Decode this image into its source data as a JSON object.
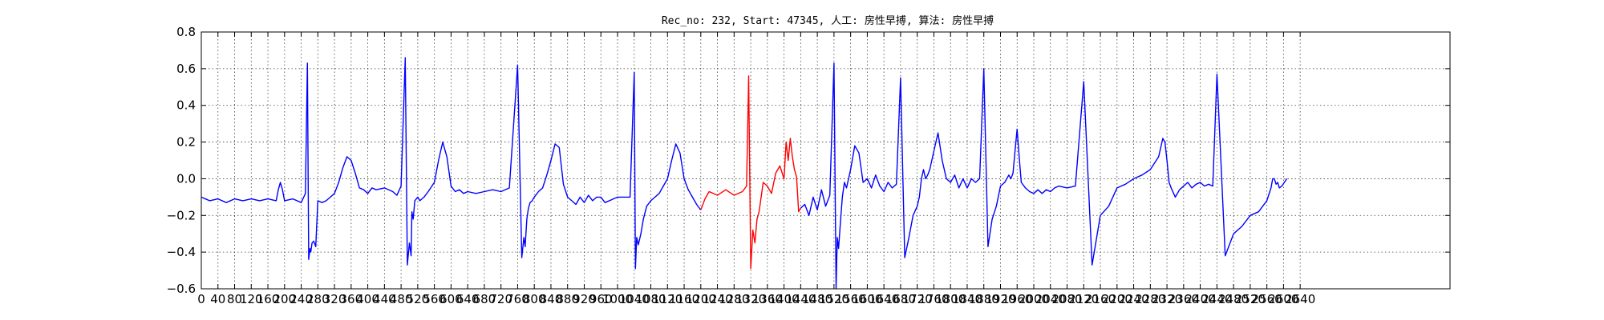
{
  "chart_data": {
    "type": "line",
    "title": "Rec_no: 232, Start: 47345, 人工: 房性早搏, 算法: 房性早搏",
    "xlabel": "",
    "ylabel": "",
    "xlim": [
      0,
      3000
    ],
    "ylim": [
      -0.6,
      0.8
    ],
    "yticks": [
      -0.6,
      -0.4,
      -0.2,
      0.0,
      0.2,
      0.4,
      0.6,
      0.8
    ],
    "ytick_labels": [
      "−0.6",
      "−0.4",
      "−0.2",
      "0.0",
      "0.2",
      "0.4",
      "0.6",
      "0.8"
    ],
    "xticks": [
      0,
      40,
      80,
      120,
      160,
      200,
      240,
      280,
      320,
      360,
      400,
      440,
      480,
      520,
      560,
      600,
      640,
      680,
      720,
      760,
      800,
      840,
      880,
      920,
      960,
      1000,
      1040,
      1080,
      1120,
      1160,
      1200,
      1240,
      1280,
      1320,
      1360,
      1400,
      1440,
      1480,
      1520,
      1560,
      1600,
      1640,
      1680,
      1720,
      1760,
      1800,
      1840,
      1880,
      1920,
      1960,
      2000,
      2040,
      2080,
      2120,
      2160,
      2200,
      2240,
      2280,
      2320,
      2360,
      2400,
      2440,
      2480,
      2520,
      2560,
      2600,
      2640
    ],
    "grid": true,
    "series": [
      {
        "color": "#0000ff",
        "x": [
          0,
          20,
          40,
          60,
          80,
          100,
          120,
          140,
          160,
          180,
          185,
          190,
          195,
          200,
          220,
          240,
          250,
          255,
          258,
          261,
          263,
          266,
          270,
          275,
          280,
          290,
          300,
          310,
          320,
          330,
          340,
          350,
          360,
          370,
          380,
          390,
          400,
          410,
          420,
          440,
          460,
          470,
          480,
          490,
          495,
          500,
          504,
          506,
          509,
          513,
          520,
          525,
          535,
          545,
          560,
          570,
          580,
          590,
          600,
          610,
          620,
          630,
          640,
          660,
          680,
          700,
          720,
          740,
          760,
          770,
          775,
          778,
          782,
          786,
          790,
          795,
          800,
          810,
          820,
          830,
          840,
          850,
          860,
          870,
          880,
          890,
          900,
          910,
          920,
          930,
          940,
          950,
          960,
          970,
          1000,
          1030,
          1040,
          1043,
          1046,
          1050,
          1056,
          1062,
          1070,
          1080,
          1090,
          1100,
          1110,
          1120,
          1130,
          1140,
          1150,
          1160,
          1170,
          1180,
          1190,
          1200
        ],
        "y": [
          -0.1,
          -0.12,
          -0.11,
          -0.13,
          -0.11,
          -0.12,
          -0.11,
          -0.12,
          -0.11,
          -0.12,
          -0.06,
          -0.02,
          -0.06,
          -0.12,
          -0.11,
          -0.13,
          -0.08,
          0.63,
          -0.44,
          -0.38,
          -0.4,
          -0.35,
          -0.34,
          -0.37,
          -0.12,
          -0.13,
          -0.12,
          -0.1,
          -0.08,
          -0.02,
          0.06,
          0.12,
          0.1,
          0.03,
          -0.05,
          -0.06,
          -0.08,
          -0.05,
          -0.06,
          -0.05,
          -0.07,
          -0.09,
          -0.04,
          0.66,
          -0.47,
          -0.35,
          -0.42,
          -0.18,
          -0.22,
          -0.12,
          -0.1,
          -0.12,
          -0.1,
          -0.07,
          -0.02,
          0.1,
          0.2,
          0.12,
          -0.04,
          -0.07,
          -0.06,
          -0.08,
          -0.07,
          -0.08,
          -0.07,
          -0.06,
          -0.07,
          -0.05,
          0.62,
          -0.43,
          -0.32,
          -0.37,
          -0.22,
          -0.16,
          -0.13,
          -0.12,
          -0.1,
          -0.07,
          -0.05,
          0.02,
          0.1,
          0.19,
          0.17,
          -0.03,
          -0.1,
          -0.12,
          -0.14,
          -0.1,
          -0.13,
          -0.09,
          -0.12,
          -0.1,
          -0.1,
          -0.13,
          -0.1,
          -0.1,
          0.58,
          -0.49,
          -0.32,
          -0.36,
          -0.3,
          -0.22,
          -0.15,
          -0.12,
          -0.1,
          -0.08,
          -0.04,
          0.0,
          0.1,
          0.19,
          0.14,
          0.0,
          -0.06,
          -0.1,
          -0.14,
          -0.17
        ]
      },
      {
        "color": "#ff0000",
        "x": [
          1200,
          1210,
          1220,
          1240,
          1260,
          1280,
          1300,
          1310,
          1315,
          1320,
          1325,
          1330,
          1335,
          1340,
          1350,
          1360,
          1370,
          1380,
          1390,
          1400,
          1405,
          1410,
          1415,
          1420,
          1425,
          1430,
          1435,
          1440
        ],
        "y": [
          -0.17,
          -0.11,
          -0.07,
          -0.09,
          -0.06,
          -0.09,
          -0.07,
          -0.04,
          0.56,
          -0.49,
          -0.28,
          -0.35,
          -0.22,
          -0.18,
          -0.02,
          -0.04,
          -0.08,
          0.03,
          0.07,
          0.0,
          0.2,
          0.1,
          0.22,
          0.12,
          0.05,
          0.01,
          -0.18,
          -0.16
        ]
      },
      {
        "color": "#0000ff",
        "x": [
          1440,
          1450,
          1460,
          1470,
          1480,
          1490,
          1500,
          1510,
          1520,
          1525,
          1528,
          1531,
          1535,
          1540,
          1545,
          1550,
          1560,
          1570,
          1580,
          1590,
          1600,
          1610,
          1620,
          1630,
          1640,
          1650,
          1660,
          1670,
          1680,
          1690,
          1700,
          1710,
          1720,
          1725,
          1730,
          1735,
          1740,
          1745,
          1750,
          1760,
          1770,
          1780,
          1790,
          1800,
          1810,
          1820,
          1830,
          1840,
          1850,
          1860,
          1870,
          1880,
          1890,
          1900,
          1910,
          1920,
          1930,
          1940,
          1945,
          1950,
          1955,
          1960,
          1965,
          1970,
          1980,
          1990,
          2000,
          2010,
          2020,
          2030,
          2040,
          2050,
          2060,
          2080,
          2100,
          2120,
          2140,
          2160,
          2180,
          2200,
          2220,
          2240,
          2260,
          2280,
          2300,
          2310,
          2315,
          2320,
          2325,
          2330,
          2340,
          2350,
          2360,
          2370,
          2380,
          2390,
          2400,
          2410,
          2420,
          2430,
          2440,
          2460,
          2480,
          2500,
          2520,
          2540,
          2560,
          2570,
          2574,
          2578,
          2582,
          2586,
          2590,
          2596,
          2602,
          2608
        ],
        "y": [
          -0.16,
          -0.14,
          -0.2,
          -0.1,
          -0.17,
          -0.06,
          -0.15,
          -0.09,
          0.63,
          -0.6,
          -0.32,
          -0.38,
          -0.25,
          -0.1,
          -0.02,
          -0.05,
          0.05,
          0.18,
          0.14,
          -0.02,
          0.0,
          -0.05,
          0.02,
          -0.04,
          -0.07,
          -0.02,
          -0.05,
          -0.03,
          0.55,
          -0.43,
          -0.32,
          -0.2,
          -0.15,
          -0.1,
          0.0,
          0.05,
          0.0,
          0.02,
          0.05,
          0.15,
          0.25,
          0.1,
          0.0,
          -0.02,
          0.02,
          -0.05,
          0.0,
          -0.05,
          0.0,
          -0.02,
          0.0,
          0.6,
          -0.37,
          -0.22,
          -0.15,
          -0.04,
          -0.02,
          0.02,
          0.0,
          0.03,
          0.15,
          0.27,
          0.12,
          -0.02,
          -0.05,
          -0.07,
          -0.08,
          -0.06,
          -0.08,
          -0.06,
          -0.07,
          -0.05,
          -0.04,
          -0.05,
          -0.04,
          0.53,
          -0.47,
          -0.2,
          -0.15,
          -0.05,
          -0.03,
          0.0,
          0.02,
          0.05,
          0.12,
          0.22,
          0.2,
          0.1,
          -0.02,
          -0.05,
          -0.1,
          -0.06,
          -0.04,
          -0.02,
          -0.05,
          -0.03,
          -0.02,
          -0.04,
          -0.03,
          -0.04,
          0.57,
          -0.42,
          -0.3,
          -0.26,
          -0.2,
          -0.18,
          -0.12,
          -0.05,
          0.0,
          0.0,
          -0.03,
          -0.02,
          -0.05,
          -0.04,
          -0.02,
          0.0
        ]
      }
    ]
  }
}
